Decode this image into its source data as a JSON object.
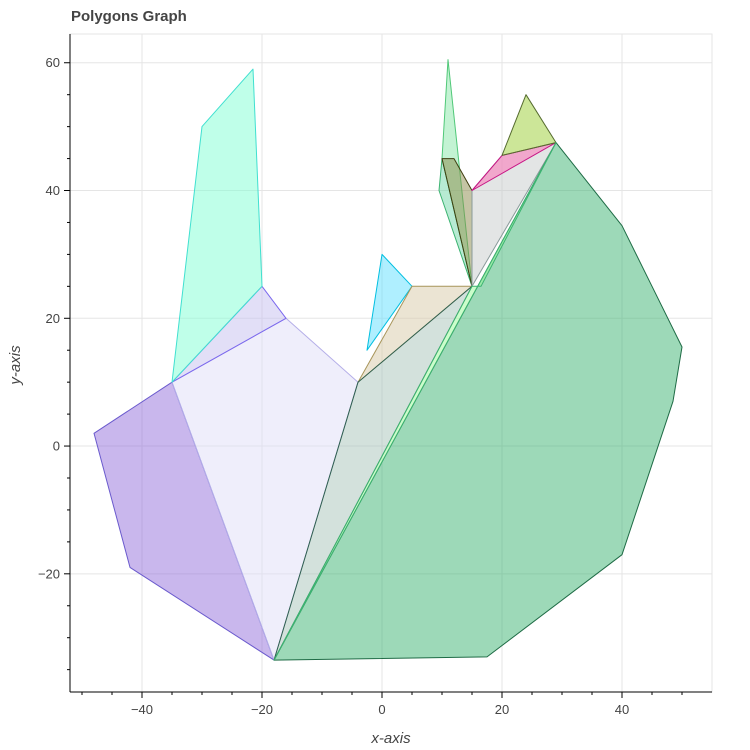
{
  "chart_data": {
    "type": "polygon",
    "title": "Polygons Graph",
    "xlabel": "x-axis",
    "ylabel": "y-axis",
    "xlim": [
      -52,
      55
    ],
    "ylim": [
      -38.5,
      64.5
    ],
    "xticks": [
      -40,
      -20,
      0,
      20,
      40
    ],
    "yticks": [
      60,
      40,
      20,
      0,
      -20
    ],
    "xtick_labels": [
      "−40",
      "−20",
      "0",
      "20",
      "40"
    ],
    "ytick_labels": [
      "60",
      "40",
      "20",
      "0",
      "−20"
    ],
    "grid": true,
    "legend": "none",
    "polygons": [
      {
        "fill": "#9370db",
        "stroke": "#6a5acd",
        "points": [
          [
            -35,
            10
          ],
          [
            -48,
            2
          ],
          [
            -42,
            -19
          ],
          [
            -18,
            -33.5
          ]
        ]
      },
      {
        "fill": "#e0ddf7",
        "stroke": "#b4aee8",
        "points": [
          [
            -35,
            10
          ],
          [
            -16,
            20
          ],
          [
            -4,
            10
          ],
          [
            -18,
            -33.5
          ]
        ]
      },
      {
        "fill": "#c6c0f0",
        "stroke": "#7b68ee",
        "points": [
          [
            -35,
            10
          ],
          [
            -20,
            25
          ],
          [
            -16,
            20
          ]
        ]
      },
      {
        "fill": "#7fffd4",
        "stroke": "#40e0d0",
        "points": [
          [
            -35,
            10
          ],
          [
            -30,
            50
          ],
          [
            -21.5,
            59
          ],
          [
            -20,
            25
          ]
        ]
      },
      {
        "fill": "#60e0ff",
        "stroke": "#00bfe0",
        "points": [
          [
            -2.5,
            15
          ],
          [
            0,
            30
          ],
          [
            5,
            25
          ]
        ]
      },
      {
        "fill": "#d8c9a8",
        "stroke": "#a8955a",
        "points": [
          [
            -4,
            10
          ],
          [
            5,
            25
          ],
          [
            15,
            25
          ]
        ]
      },
      {
        "fill": "#a8c4ba",
        "stroke": "#2f5f4f",
        "points": [
          [
            -4,
            10
          ],
          [
            15,
            25
          ],
          [
            -18,
            -33.5
          ]
        ]
      },
      {
        "fill": "#88e8a8",
        "stroke": "#50c878",
        "points": [
          [
            15,
            25
          ],
          [
            11,
            60.5
          ],
          [
            10,
            45
          ]
        ]
      },
      {
        "fill": "#6fd8a8",
        "stroke": "#3cb371",
        "points": [
          [
            15,
            25
          ],
          [
            10,
            45
          ],
          [
            9.5,
            40
          ]
        ]
      },
      {
        "fill": "#8a8a4a",
        "stroke": "#3f3f10",
        "points": [
          [
            10,
            45
          ],
          [
            12,
            45
          ],
          [
            15,
            40
          ],
          [
            15,
            25
          ]
        ]
      },
      {
        "fill": "#c8cccc",
        "stroke": "#8a9a9a",
        "points": [
          [
            15,
            40
          ],
          [
            20,
            45.5
          ],
          [
            29,
            47.5
          ],
          [
            15,
            25
          ]
        ]
      },
      {
        "fill": "#ff69b4",
        "stroke": "#c71585",
        "points": [
          [
            15,
            40
          ],
          [
            20,
            45.5
          ],
          [
            29,
            47.5
          ]
        ]
      },
      {
        "fill": "#9acd32",
        "stroke": "#556b2f",
        "points": [
          [
            20,
            45.5
          ],
          [
            24,
            55
          ],
          [
            29,
            47.5
          ]
        ]
      },
      {
        "fill": "#3cb371",
        "stroke": "#1e6b45",
        "points": [
          [
            29,
            47.5
          ],
          [
            40,
            34.5
          ],
          [
            45,
            25
          ],
          [
            50,
            15.5
          ],
          [
            48.5,
            7
          ],
          [
            40,
            -17
          ],
          [
            17.5,
            -33
          ],
          [
            -18,
            -33.5
          ]
        ]
      },
      {
        "fill": "#98fb98",
        "stroke": "#3cb371",
        "points": [
          [
            15,
            25
          ],
          [
            16.5,
            25
          ],
          [
            29,
            47.5
          ],
          [
            -18,
            -33.5
          ]
        ]
      }
    ]
  }
}
